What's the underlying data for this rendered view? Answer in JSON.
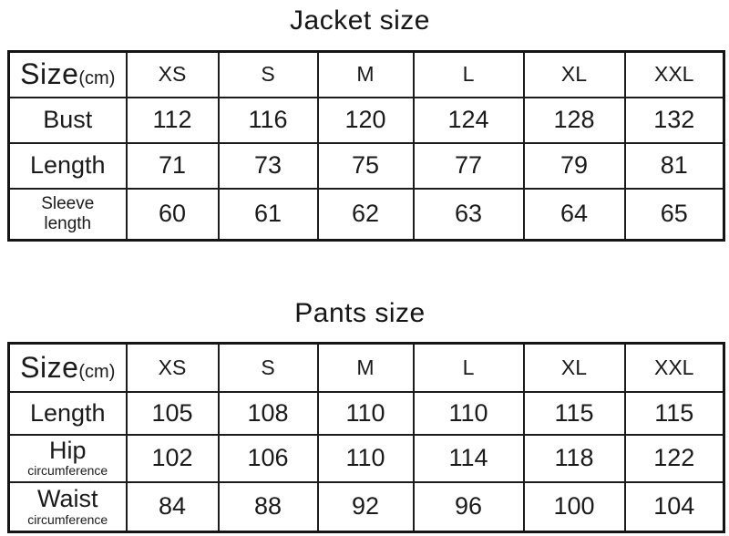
{
  "colors": {
    "background": "#ffffff",
    "text": "#1a1a1a",
    "border": "#1c1c1c"
  },
  "tables": [
    {
      "title": "Jacket size",
      "size_label": "Size",
      "size_unit": "(cm)",
      "size_columns": [
        "XS",
        "S",
        "M",
        "L",
        "XL",
        "XXL"
      ],
      "rows": [
        {
          "label": "Bust",
          "sublabel": "",
          "values": [
            "112",
            "116",
            "120",
            "124",
            "128",
            "132"
          ]
        },
        {
          "label": "Length",
          "sublabel": "",
          "values": [
            "71",
            "73",
            "75",
            "77",
            "79",
            "81"
          ]
        },
        {
          "label": "Sleeve",
          "sublabel": "length",
          "values": [
            "60",
            "61",
            "62",
            "63",
            "64",
            "65"
          ]
        }
      ]
    },
    {
      "title": "Pants size",
      "size_label": "Size",
      "size_unit": "(cm)",
      "size_columns": [
        "XS",
        "S",
        "M",
        "L",
        "XL",
        "XXL"
      ],
      "rows": [
        {
          "label": "Length",
          "sublabel": "",
          "values": [
            "105",
            "108",
            "110",
            "110",
            "115",
            "115"
          ]
        },
        {
          "label": "Hip",
          "sublabel": "circumference",
          "values": [
            "102",
            "106",
            "110",
            "114",
            "118",
            "122"
          ]
        },
        {
          "label": "Waist",
          "sublabel": "circumference",
          "values": [
            "84",
            "88",
            "92",
            "96",
            "100",
            "104"
          ]
        }
      ]
    }
  ],
  "chart_data": [
    {
      "type": "table",
      "title": "Jacket size",
      "columns": [
        "Size(cm)",
        "XS",
        "S",
        "M",
        "L",
        "XL",
        "XXL"
      ],
      "rows": [
        [
          "Bust",
          112,
          116,
          120,
          124,
          128,
          132
        ],
        [
          "Length",
          71,
          73,
          75,
          77,
          79,
          81
        ],
        [
          "Sleeve length",
          60,
          61,
          62,
          63,
          64,
          65
        ]
      ]
    },
    {
      "type": "table",
      "title": "Pants size",
      "columns": [
        "Size(cm)",
        "XS",
        "S",
        "M",
        "L",
        "XL",
        "XXL"
      ],
      "rows": [
        [
          "Length",
          105,
          108,
          110,
          110,
          115,
          115
        ],
        [
          "Hip circumference",
          102,
          106,
          110,
          114,
          118,
          122
        ],
        [
          "Waist circumference",
          84,
          88,
          92,
          96,
          100,
          104
        ]
      ]
    }
  ]
}
